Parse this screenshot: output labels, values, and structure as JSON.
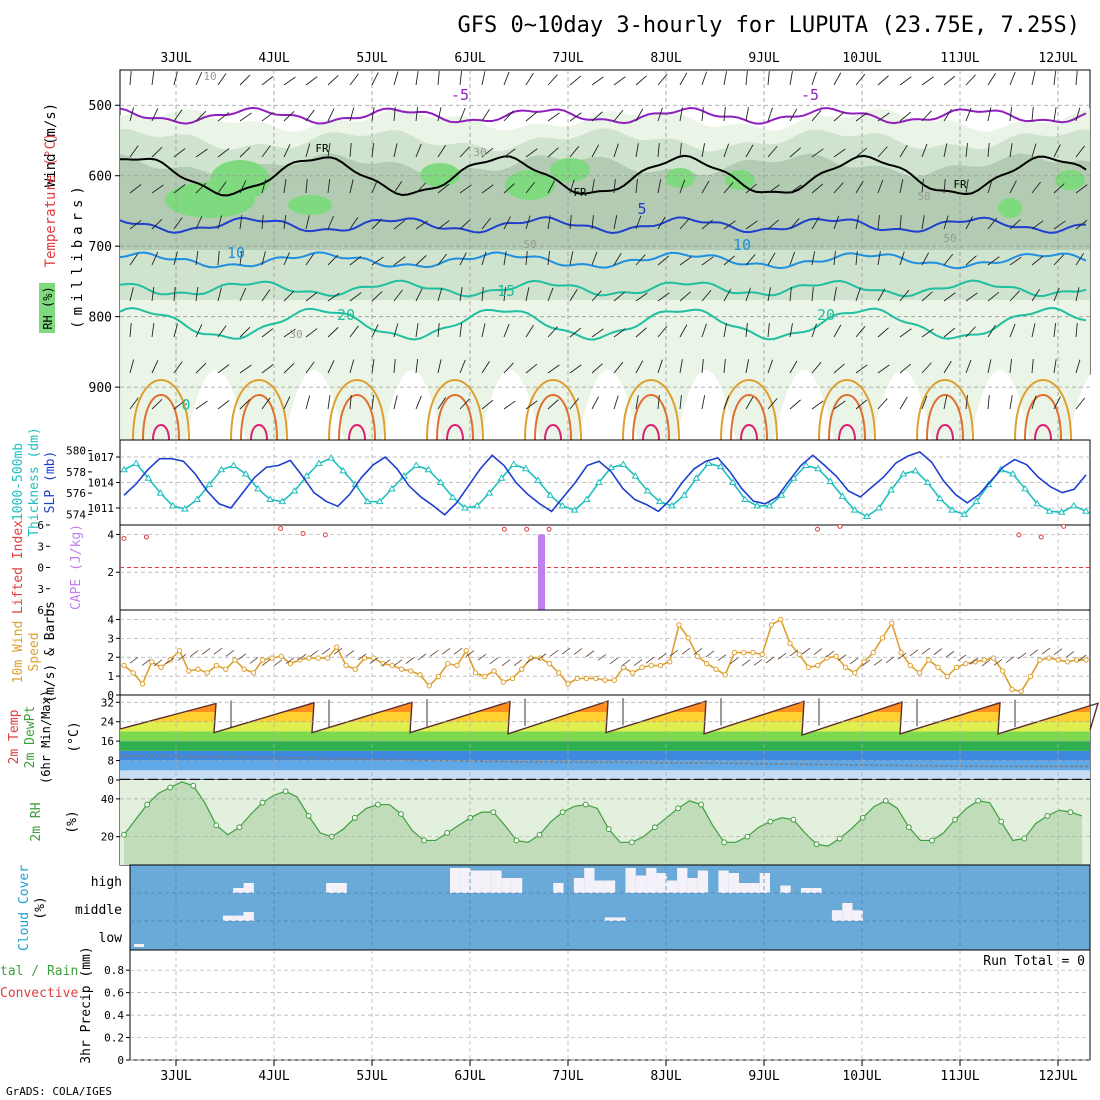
{
  "title": "GFS 0~10day 3-hourly for LUPUTA (23.75E, 7.25S)",
  "credit": "GrADS: COLA/IGES",
  "run_total_label": "Run Total = 0",
  "colors": {
    "rh_fill": [
      "#eaf4e6",
      "#cfe2cc",
      "#b1c9b1",
      "#7fd97f"
    ],
    "freezing": "#000000",
    "temp_neg": "#8f1fbf",
    "temp_5": "#1f3fcf",
    "temp_10": "#1f8fdf",
    "temp_15_20": "#1fbfa0",
    "temp_warm": "#df9f2f",
    "temp_hot": "#df1f6f",
    "slp": "#1f3fcf",
    "thickness": "#1fbfbf",
    "cape": "#bf7fef",
    "lifted_index": "#df3f3f",
    "wind10m": "#df9f2f",
    "rh2m": "#3f9f3f",
    "cloud_bg": "#6aaad8",
    "cloud_fill": "#f4f1f8"
  },
  "chart_data": [
    {
      "type": "heatmap",
      "panel": "upper-air",
      "ylabel_parts": [
        "Wind (m/s)",
        "Temperature (°C)",
        "RH (%)",
        "(millibars)"
      ],
      "yticks": [
        500,
        600,
        700,
        800,
        900
      ],
      "ylim": [
        975,
        450
      ],
      "x_ticks": [
        "3JUL",
        "4JUL",
        "5JUL",
        "6JUL",
        "7JUL",
        "8JUL",
        "9JUL",
        "10JUL",
        "11JUL",
        "12JUL"
      ],
      "contour_labels": [
        "-5",
        "-5",
        "FR",
        "FR",
        "FR",
        "5",
        "10",
        "10",
        "15",
        "20",
        "20",
        "0",
        "30",
        "30",
        "50",
        "50",
        "50",
        "10"
      ],
      "isotherms_hpa": [
        {
          "label": "-5",
          "level_hpa": 515
        },
        {
          "label": "FR",
          "level_hpa": 600
        },
        {
          "label": "5",
          "level_hpa": 670
        },
        {
          "label": "10",
          "level_hpa": 720
        },
        {
          "label": "15",
          "level_hpa": 760
        },
        {
          "label": "20",
          "level_hpa": 810
        }
      ]
    },
    {
      "type": "line",
      "panel": "slp-thickness",
      "ylabel_left": "1000-500mb Thickness (dm)",
      "ylabel_right": "SLP (mb)",
      "yticks_left": [
        574,
        576,
        578,
        580
      ],
      "yticks_right": [
        1011,
        1014,
        1017
      ],
      "ylim_left": [
        573,
        581
      ],
      "ylim_right": [
        1009,
        1019
      ],
      "series": [
        {
          "name": "SLP (mb)",
          "axis": "right",
          "values": [
            1012.5,
            1013.8,
            1015.5,
            1016.8,
            1016.8,
            1016.5,
            1015,
            1013,
            1011.5,
            1011,
            1012.8,
            1014.6,
            1015.8,
            1016,
            1016.6,
            1014.8,
            1012.8,
            1011.8,
            1011.2,
            1012.6,
            1014.6,
            1016.1,
            1017,
            1015.6,
            1013.6,
            1012.3,
            1011.3,
            1010.2,
            1011.6,
            1013.6,
            1015.6,
            1017.2,
            1016,
            1014,
            1012.6,
            1011.5,
            1010.6,
            1012.3,
            1014,
            1016,
            1016.5,
            1015.3,
            1013.3,
            1012,
            1011.4,
            1010.6,
            1012,
            1014,
            1015.6,
            1016.5,
            1016.9,
            1015.3,
            1013.3,
            1011.8,
            1011.5,
            1012.3,
            1014.2,
            1016,
            1017.2,
            1016,
            1014.7,
            1013,
            1012.3,
            1013.5,
            1014.7,
            1016.3,
            1017.1,
            1017.6,
            1016.4,
            1014.2,
            1012.6,
            1011.6,
            1012.6,
            1014.2,
            1015.8,
            1016.7,
            1016.1,
            1014.6,
            1013.5,
            1012.8,
            1013.2,
            1014.9
          ]
        },
        {
          "name": "1000-500mb Thickness (dm)",
          "axis": "left",
          "values": [
            578.2,
            578.8,
            577.4,
            576,
            574.8,
            574.5,
            575.4,
            576.8,
            578.2,
            578.6,
            577.8,
            576.4,
            575.4,
            575.2,
            576.2,
            577.6,
            578.8,
            579.3,
            578.1,
            576.8,
            575.2,
            575.2,
            576.4,
            577.6,
            578.6,
            578.2,
            577,
            575.6,
            574.6,
            574.8,
            576,
            577.4,
            578.7,
            578.3,
            577.2,
            575.8,
            574.8,
            574.4,
            575.4,
            577,
            578.4,
            578.7,
            577.6,
            576.2,
            575.2,
            574.8,
            575.8,
            577.4,
            578.8,
            578.5,
            577,
            575.4,
            574.8,
            574.8,
            575.8,
            577.4,
            578.6,
            578.3,
            577.1,
            575.7,
            574.4,
            573.8,
            574.6,
            576.3,
            577.8,
            578.1,
            577,
            575.5,
            574.4,
            574,
            575.2,
            576.8,
            578.2,
            577.8,
            576.4,
            575,
            574.3,
            574.2,
            574.8,
            574.3
          ]
        }
      ]
    },
    {
      "type": "line",
      "panel": "cape-lifted-index",
      "ylabel_left": "Lifted Index",
      "ylabel_right": "CAPE (J/kg)",
      "yticks_left": [
        -6,
        -3,
        0,
        3,
        6
      ],
      "ylim_left": [
        -6,
        6
      ],
      "yticks_right": [
        2,
        4
      ],
      "ylim_right": [
        0,
        4.5
      ],
      "series": [
        {
          "name": "Lifted Index",
          "values": [
            4.1,
            4.3,
            5.9,
            6.3,
            6.4,
            6.4,
            6.4,
            5.5,
            4.8,
            4.6,
            6.2,
            6.4,
            6.4,
            6.4,
            6.4,
            6.4,
            6.4,
            5.4,
            5.4,
            5.4,
            6.2,
            6.4,
            6.4,
            6.4,
            6.4,
            6.4,
            6.4,
            6.4,
            6.4,
            6.4,
            6.4,
            5.4,
            5.8,
            6.4,
            6.4,
            6.4,
            6.4,
            6.4,
            6.4,
            6.4,
            4.6,
            4.3,
            5.8,
            6.4
          ]
        },
        {
          "name": "CAPE (J/kg)",
          "bar_x_day": 6.5,
          "bar_value": 4.0
        }
      ]
    },
    {
      "type": "line",
      "panel": "10m-wind",
      "ylabel": "10m Wind Speed (m/s) & Barbs",
      "yticks": [
        0,
        1,
        2,
        3,
        4
      ],
      "ylim": [
        0,
        4.5
      ],
      "series": [
        {
          "name": "10m Wind Speed (m/s)",
          "values": [
            1.6,
            1.2,
            0.6,
            1.8,
            1.5,
            1.9,
            2.4,
            1.3,
            1.4,
            1.2,
            1.6,
            1.4,
            1.9,
            1.4,
            1.2,
            1.9,
            2.0,
            2.1,
            1.7,
            1.9,
            2.0,
            2.0,
            2.0,
            2.6,
            1.6,
            1.4,
            2.0,
            2.0,
            1.7,
            1.6,
            1.4,
            1.3,
            1.1,
            0.5,
            1.0,
            1.7,
            1.6,
            2.4,
            1.2,
            1.0,
            1.3,
            0.7,
            0.9,
            1.4,
            2.0,
            2.0,
            1.7,
            1.2,
            0.6,
            0.9,
            0.9,
            0.9,
            0.8,
            0.8,
            1.5,
            1.2,
            1.5,
            1.6,
            1.6,
            1.8,
            3.8,
            3.1,
            2.1,
            1.7,
            1.4,
            1.1,
            2.3,
            2.3,
            2.3,
            2.2,
            3.8,
            4.1,
            2.8,
            2.2,
            1.5,
            1.6,
            2.0,
            2.1,
            1.5,
            1.2,
            1.8,
            2.3,
            3.1,
            3.9,
            2.3,
            1.6,
            1.2,
            1.9,
            1.5,
            1.0,
            1.5,
            1.7,
            1.8,
            1.9,
            2.0,
            1.3,
            0.3,
            0.2,
            1.0,
            1.9,
            2.0,
            1.9,
            1.8,
            1.9,
            1.9
          ]
        }
      ]
    },
    {
      "type": "area",
      "panel": "2m-temp",
      "ylabel": "2m Temp 2m DewPt (6hr Min/Max) (°C)",
      "yticks": [
        0,
        8,
        16,
        24,
        32
      ],
      "ylim": [
        0,
        35
      ],
      "series": [
        {
          "name": "2m Temp (°C)",
          "daily_max": [
            31.5,
            31.8,
            32.0,
            32.3,
            32.5,
            32.5,
            32.4,
            32.1,
            31.8,
            31.6
          ],
          "daily_min": [
            21.0,
            19.5,
            19.5,
            19.5,
            19.0,
            19.5,
            19.0,
            18.5,
            19.0,
            19.0,
            20.5
          ]
        },
        {
          "name": "2m DewPt (°C)",
          "values": [
            10.0,
            9.5,
            9.0,
            8.2,
            7.5,
            7.3,
            7.0,
            6.5,
            6.0,
            5.6,
            5.6
          ]
        }
      ]
    },
    {
      "type": "area",
      "panel": "2m-rh",
      "ylabel": "2m RH (%)",
      "yticks": [
        20,
        40
      ],
      "ylim": [
        5,
        50
      ],
      "series": [
        {
          "name": "2m RH (%)",
          "values": [
            21,
            29,
            37,
            43,
            46,
            49,
            47,
            38,
            26,
            21,
            25,
            32,
            38,
            42,
            44,
            41,
            31,
            22,
            20,
            24,
            30,
            35,
            37,
            37,
            32,
            23,
            18,
            18,
            22,
            26,
            30,
            33,
            33,
            26,
            18,
            17,
            21,
            28,
            33,
            36,
            37,
            35,
            24,
            17,
            17,
            20,
            25,
            30,
            35,
            39,
            37,
            26,
            17,
            17,
            20,
            25,
            28,
            30,
            29,
            22,
            16,
            15,
            19,
            24,
            30,
            36,
            39,
            35,
            25,
            18,
            18,
            22,
            29,
            35,
            39,
            38,
            28,
            18,
            19,
            27,
            31,
            34,
            33,
            31
          ]
        }
      ]
    },
    {
      "type": "bar",
      "panel": "cloud-cover",
      "ylabel": "Cloud Cover (%)",
      "layers": [
        "high",
        "middle",
        "low"
      ],
      "high_layer_fraction": [
        0,
        0,
        0,
        0,
        0,
        0,
        0,
        0,
        0,
        0,
        0.2,
        0.4,
        0,
        0,
        0,
        0,
        0,
        0,
        0,
        0.4,
        0.4,
        0,
        0,
        0,
        0,
        0,
        0,
        0,
        0,
        0,
        0,
        1.0,
        1.0,
        0.9,
        0.9,
        0.9,
        0.6,
        0.6,
        0,
        0,
        0,
        0.4,
        0,
        0.6,
        1.0,
        0.5,
        0.5,
        0,
        1.0,
        0.7,
        1.0,
        0.8,
        0.5,
        1.0,
        0.6,
        0.9,
        0,
        0.9,
        0.8,
        0.4,
        0.4,
        0.8,
        0,
        0.3,
        0,
        0.2,
        0.2,
        0,
        0,
        0,
        0,
        0,
        0,
        0,
        0,
        0,
        0,
        0,
        0,
        0,
        0,
        0,
        0,
        0,
        0,
        0,
        0,
        0,
        0,
        0,
        0,
        0,
        0
      ],
      "middle_layer_fraction": [
        0,
        0,
        0,
        0,
        0,
        0,
        0,
        0,
        0,
        0.3,
        0.3,
        0.5,
        0,
        0,
        0,
        0,
        0,
        0,
        0,
        0,
        0,
        0,
        0,
        0,
        0,
        0,
        0,
        0,
        0,
        0,
        0,
        0,
        0,
        0,
        0,
        0,
        0,
        0,
        0,
        0,
        0,
        0,
        0,
        0,
        0,
        0,
        0.2,
        0.2,
        0,
        0,
        0,
        0,
        0,
        0,
        0,
        0,
        0,
        0,
        0,
        0,
        0,
        0,
        0,
        0,
        0,
        0,
        0,
        0,
        0.6,
        1.0,
        0.6,
        0,
        0,
        0,
        0,
        0,
        0,
        0,
        0,
        0,
        0,
        0,
        0,
        0,
        0,
        0,
        0,
        0,
        0,
        0,
        0
      ]
    },
    {
      "type": "bar",
      "panel": "precip",
      "ylabel": "3hr Precip (mm)",
      "legend_labels": [
        "Total / Rain",
        "Convective"
      ],
      "yticks": [
        0,
        0.2,
        0.4,
        0.6,
        0.8
      ],
      "ylim": [
        0,
        0.98
      ],
      "series": [
        {
          "name": "Total / Rain",
          "values": []
        },
        {
          "name": "Convective",
          "values": []
        }
      ]
    }
  ],
  "labels": {
    "upper_wind": "Wind (m/s)",
    "upper_temp": "Temperature (°C)",
    "upper_rh": "RH (%)",
    "upper_mb": "(millibars)",
    "thick_a": "1000-500mb",
    "thick_b": "Thickness (dm)",
    "slp": "SLP (mb)",
    "li": "Lifted Index",
    "cape": "CAPE (J/kg)",
    "wind_a": "10m Wind",
    "wind_b": "Speed",
    "wind_c": "(m/s) & Barbs",
    "temp_a": "2m Temp",
    "temp_b": "2m DewPt",
    "temp_c": "(6hr Min/Max)",
    "temp_d": "(°C)",
    "rh_a": "2m RH",
    "rh_b": "(%)",
    "cloud_a": "Cloud Cover",
    "cloud_b": "(%)",
    "precip_a": "tal / Rain",
    "precip_b": "Convective",
    "precip_c": "3hr Precip (mm)"
  }
}
